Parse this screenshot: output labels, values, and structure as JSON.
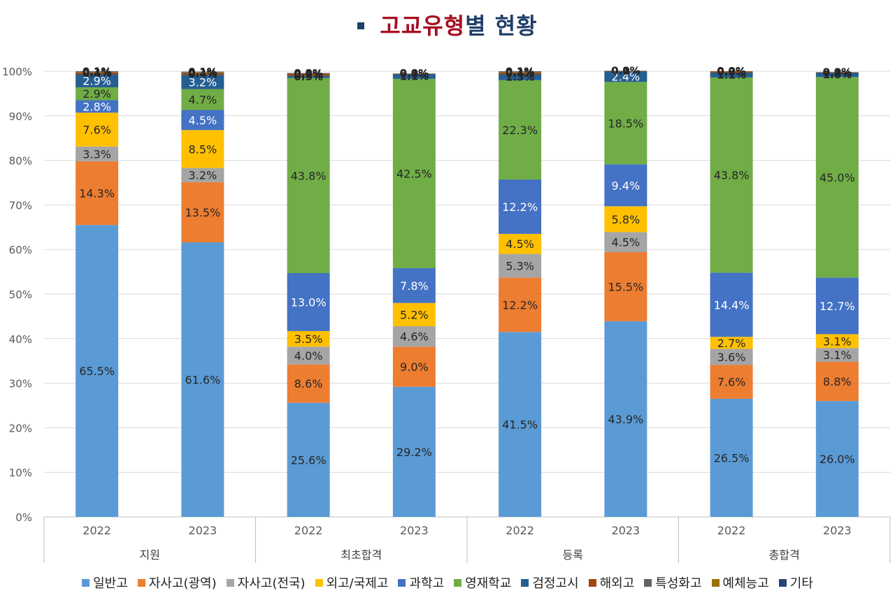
{
  "title": {
    "part1": "고교유형",
    "part2": "별 현황",
    "part1_color": "#a50d1f",
    "part2_color": "#1f3f68"
  },
  "colors": {
    "일반고": "#5b9bd5",
    "자사고(광역)": "#ed7d31",
    "자사고(전국)": "#a5a5a5",
    "외고/국제고": "#ffc000",
    "과학고": "#4472c4",
    "영재학교": "#70ad47",
    "검정고시": "#255e91",
    "해외고": "#9e480e",
    "특성화고": "#636363",
    "예체능고": "#997300",
    "기타": "#264478"
  },
  "chart_data": {
    "type": "bar",
    "stacked": true,
    "percent": true,
    "ylim": [
      0,
      100
    ],
    "yticks": [
      "0%",
      "10%",
      "20%",
      "30%",
      "40%",
      "50%",
      "60%",
      "70%",
      "80%",
      "90%",
      "100%"
    ],
    "groups": [
      "지원",
      "최초합격",
      "등록",
      "총합격"
    ],
    "categories": [
      "2022",
      "2023",
      "2022",
      "2023",
      "2022",
      "2023",
      "2022",
      "2023"
    ],
    "legend_position": "bottom",
    "series": [
      {
        "name": "일반고",
        "values": [
          65.5,
          61.6,
          25.6,
          29.2,
          41.5,
          43.9,
          26.5,
          26.0
        ],
        "labels": [
          "65.5%",
          "61.6%",
          "25.6%",
          "29.2%",
          "41.5%",
          "43.9%",
          "26.5%",
          "26.0%"
        ]
      },
      {
        "name": "자사고(광역)",
        "values": [
          14.3,
          13.5,
          8.6,
          9.0,
          12.2,
          15.5,
          7.6,
          8.8
        ],
        "labels": [
          "14.3%",
          "13.5%",
          "8.6%",
          "9.0%",
          "12.2%",
          "15.5%",
          "7.6%",
          "8.8%"
        ]
      },
      {
        "name": "자사고(전국)",
        "values": [
          3.3,
          3.2,
          4.0,
          4.6,
          5.3,
          4.5,
          3.6,
          3.1
        ],
        "labels": [
          "3.3%",
          "3.2%",
          "4.0%",
          "4.6%",
          "5.3%",
          "4.5%",
          "3.6%",
          "3.1%"
        ]
      },
      {
        "name": "외고/국제고",
        "values": [
          7.6,
          8.5,
          3.5,
          5.2,
          4.5,
          5.8,
          2.7,
          3.1
        ],
        "labels": [
          "7.6%",
          "8.5%",
          "3.5%",
          "5.2%",
          "4.5%",
          "5.8%",
          "2.7%",
          "3.1%"
        ]
      },
      {
        "name": "과학고",
        "values": [
          2.8,
          4.5,
          13.0,
          7.8,
          12.2,
          9.4,
          14.4,
          12.7
        ],
        "labels": [
          "2.8%",
          "4.5%",
          "13.0%",
          "7.8%",
          "12.2%",
          "9.4%",
          "14.4%",
          "12.7%"
        ]
      },
      {
        "name": "영재학교",
        "values": [
          2.9,
          4.7,
          43.8,
          42.5,
          22.3,
          18.5,
          43.8,
          45.0
        ],
        "labels": [
          "2.9%",
          "4.7%",
          "43.8%",
          "42.5%",
          "22.3%",
          "18.5%",
          "43.8%",
          "45.0%"
        ]
      },
      {
        "name": "검정고시",
        "values": [
          2.9,
          3.2,
          0.5,
          1.1,
          1.3,
          2.4,
          1.1,
          1.0
        ],
        "labels": [
          "2.9%",
          "3.2%",
          "0.5%",
          "1.1%",
          "1.3%",
          "2.4%",
          "1.1%",
          "1.0%"
        ]
      },
      {
        "name": "해외고",
        "values": [
          0.4,
          0.4,
          0.5,
          0.1,
          0.4,
          0.1,
          0.3,
          0.1
        ],
        "labels": [
          "0.4%",
          "0.4%",
          "0.5%",
          "0.1%",
          "0.4%",
          "0.1%",
          "0.3%",
          "0.1%"
        ]
      },
      {
        "name": "특성화고",
        "values": [
          0.1,
          0.1,
          0.0,
          0.0,
          0.1,
          0.0,
          0.0,
          0.0
        ],
        "labels": [
          "0.1%",
          "0.1%",
          "0.0%",
          "0.0%",
          "0.1%",
          "0.0%",
          "0.0%",
          "0.0%"
        ]
      },
      {
        "name": "예체능고",
        "values": [
          0.1,
          0.1,
          0.0,
          0.0,
          0.1,
          0.0,
          0.0,
          0.0
        ],
        "labels": [
          "0.1%",
          "0.1%",
          "0.0%",
          "0.0%",
          "0.1%",
          "0.0%",
          "0.0%",
          "0.0%"
        ]
      },
      {
        "name": "기타",
        "values": [
          0.1,
          0.1,
          0.1,
          0.0,
          0.1,
          0.0,
          0.0,
          0.0
        ],
        "labels": [
          "0.1%",
          "0.1%",
          "0.1%",
          "0.0%",
          "0.1%",
          "0.0%",
          "0.0%",
          "0.0%"
        ]
      }
    ]
  }
}
